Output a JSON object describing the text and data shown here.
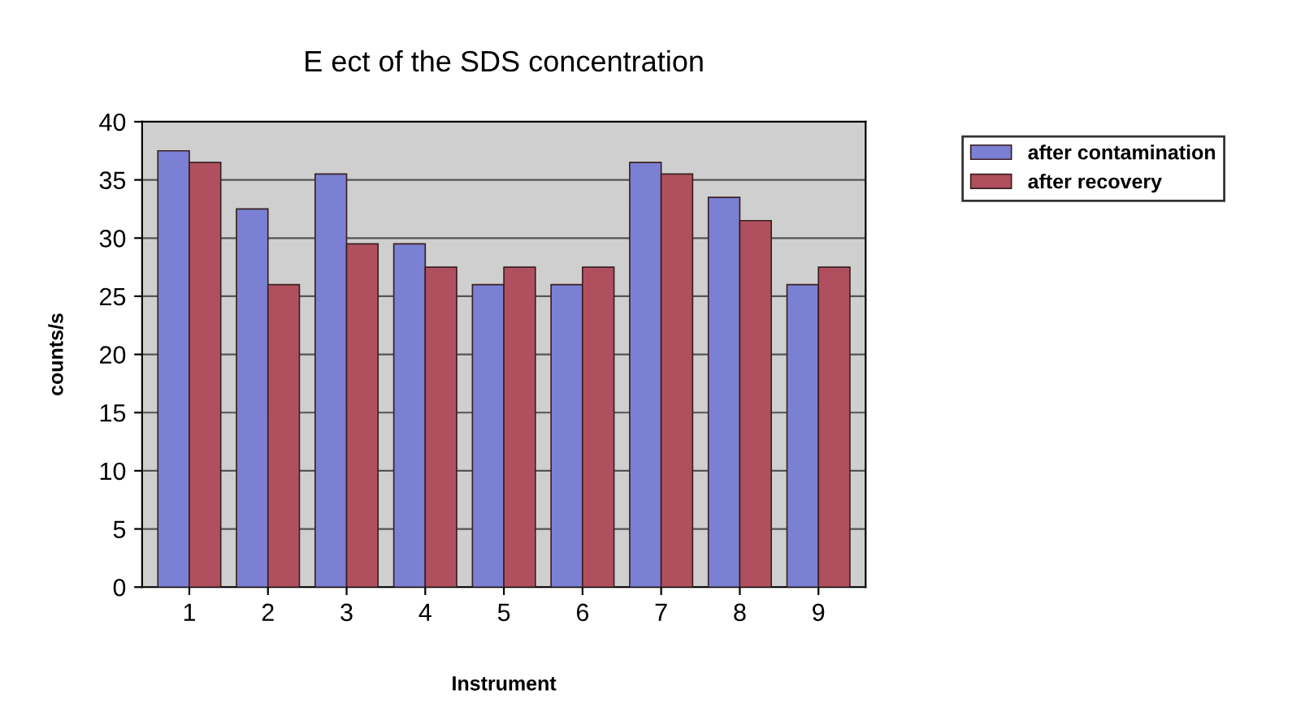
{
  "chart_data": {
    "type": "bar",
    "title": "E ect of the SDS concentration",
    "xlabel": "Instrument",
    "ylabel": "counts/s",
    "categories": [
      "1",
      "2",
      "3",
      "4",
      "5",
      "6",
      "7",
      "8",
      "9"
    ],
    "series": [
      {
        "name": "after contamination",
        "color": "#7b80d4",
        "values": [
          37.5,
          32.5,
          35.5,
          29.5,
          26,
          26,
          36.5,
          33.5,
          26
        ]
      },
      {
        "name": "after recovery",
        "color": "#b0505f",
        "values": [
          36.5,
          26,
          29.5,
          27.5,
          27.5,
          27.5,
          35.5,
          31.5,
          27.5
        ]
      }
    ],
    "ylim": [
      0,
      40
    ],
    "yticks": [
      0,
      5,
      10,
      15,
      20,
      25,
      30,
      35,
      40
    ],
    "grid": "y",
    "legend": "top right"
  }
}
